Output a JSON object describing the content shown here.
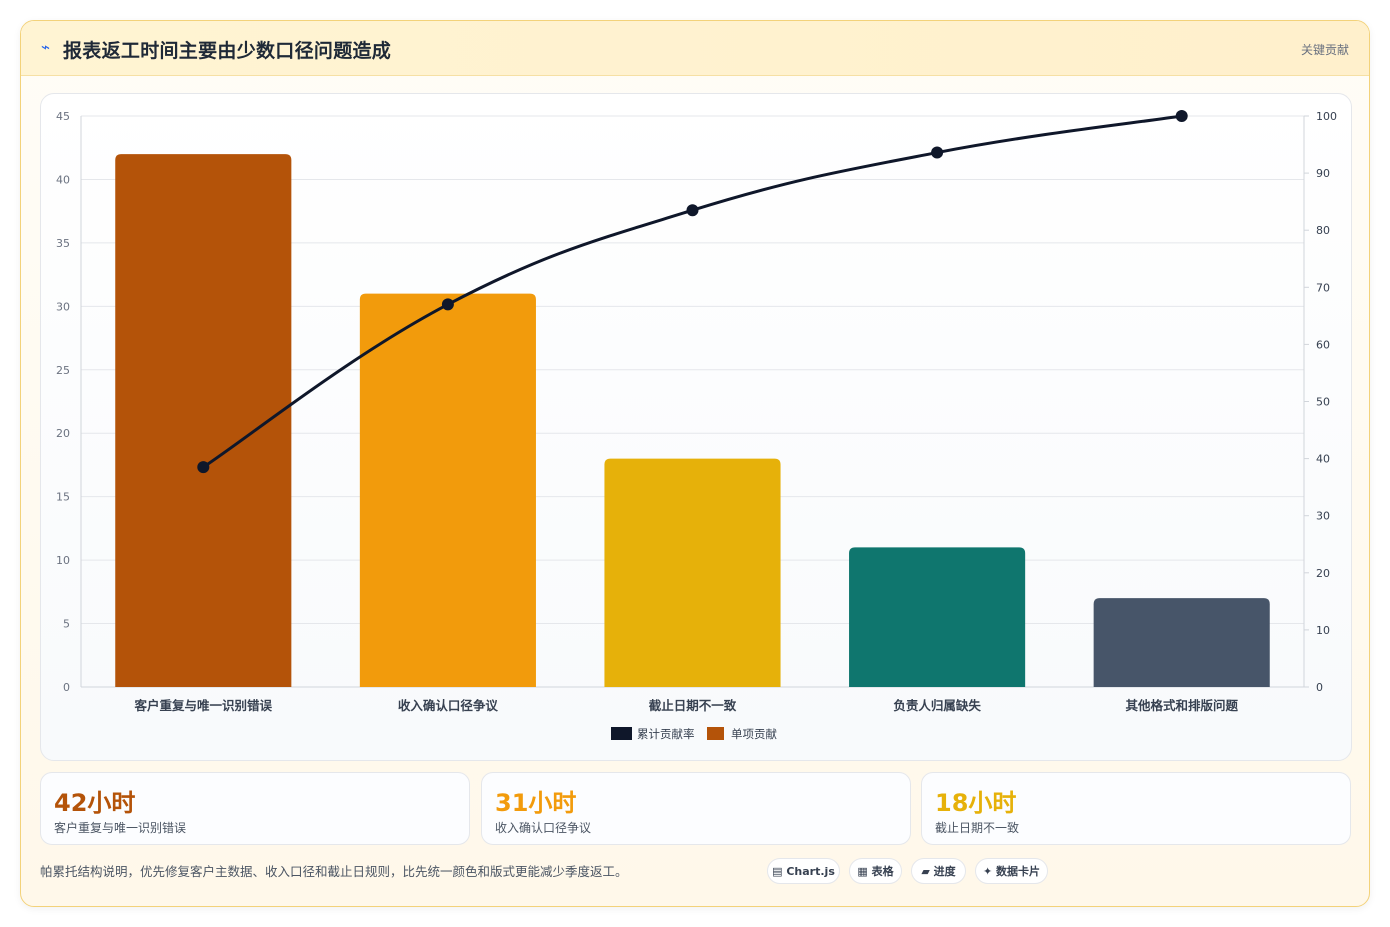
{
  "header": {
    "icon": "lightning-icon",
    "title": "报表返工时间主要由少数口径问题造成",
    "badge": "关键贡献"
  },
  "chart_data": {
    "type": "bar",
    "categories": [
      "客户重复与唯一识别错误",
      "收入确认口径争议",
      "截止日期不一致",
      "负责人归属缺失",
      "其他格式和排版问题"
    ],
    "series": [
      {
        "name": "单项贡献",
        "type": "bar",
        "values": [
          42,
          31,
          18,
          11,
          7
        ],
        "axis": "left",
        "colors": [
          "#b45309",
          "#f29b0c",
          "#e6b10a",
          "#0f766e",
          "#475569"
        ]
      },
      {
        "name": "累计贡献率",
        "type": "line",
        "values": [
          38.5,
          67.0,
          83.5,
          93.6,
          100
        ],
        "axis": "right",
        "color": "#0f172a"
      }
    ],
    "ylim_left": [
      0,
      45
    ],
    "yticks_left": [
      0,
      5,
      10,
      15,
      20,
      25,
      30,
      35,
      40,
      45
    ],
    "ylim_right": [
      0,
      100
    ],
    "yticks_right": [
      0,
      10,
      20,
      30,
      40,
      50,
      60,
      70,
      80,
      90,
      100
    ],
    "legend": {
      "position": "bottom",
      "items": [
        "累计贡献率",
        "单项贡献"
      ]
    },
    "grid": true
  },
  "stats": [
    {
      "value": "42小时",
      "label": "客户重复与唯一识别错误",
      "color": "#b45309"
    },
    {
      "value": "31小时",
      "label": "收入确认口径争议",
      "color": "#f29b0c"
    },
    {
      "value": "18小时",
      "label": "截止日期不一致",
      "color": "#e6b10a"
    }
  ],
  "footer": {
    "note": "帕累托结构说明，优先修复客户主数据、收入口径和截止日规则，比先统一颜色和版式更能减少季度返工。",
    "tags": [
      {
        "icon": "chart-icon",
        "label": "Chart.js"
      },
      {
        "icon": "table-icon",
        "label": "表格"
      },
      {
        "icon": "progress-icon",
        "label": "进度"
      },
      {
        "icon": "sparkle-icon",
        "label": "数据卡片"
      }
    ]
  }
}
